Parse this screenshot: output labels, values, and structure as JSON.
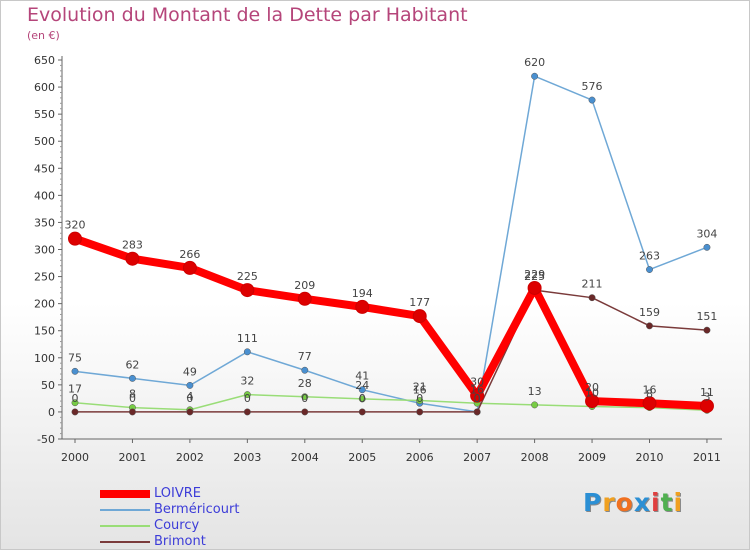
{
  "header": {
    "title": "Evolution du Montant de la Dette par Habitant",
    "subtitle": "(en €)"
  },
  "chart_data": {
    "type": "line",
    "title": "Evolution du Montant de la Dette par Habitant",
    "ylabel": "(en €)",
    "xlabel": "",
    "x": [
      "2000",
      "2001",
      "2002",
      "2003",
      "2004",
      "2005",
      "2006",
      "2007",
      "2008",
      "2009",
      "2010",
      "2011"
    ],
    "ylim": [
      -50,
      650
    ],
    "yticks": [
      -50,
      0,
      50,
      100,
      150,
      200,
      250,
      300,
      350,
      400,
      450,
      500,
      550,
      600,
      650
    ],
    "grid": false,
    "legend_position": "bottom-left",
    "series": [
      {
        "name": "LOIVRE",
        "color": "#ff0000",
        "marker_color": "#dd0000",
        "values": [
          320,
          283,
          266,
          225,
          209,
          194,
          177,
          30,
          229,
          20,
          16,
          11
        ],
        "labels": [
          "320",
          "283",
          "266",
          "225",
          "209",
          "194",
          "177",
          "30",
          "229",
          "20",
          "16",
          "11"
        ]
      },
      {
        "name": "Berméricourt",
        "color": "#6fa8d6",
        "marker_color": "#4a90d0",
        "values": [
          75,
          62,
          49,
          111,
          77,
          41,
          16,
          0,
          620,
          576,
          263,
          304
        ],
        "labels": [
          "75",
          "62",
          "49",
          "111",
          "77",
          "41",
          "16",
          "0",
          "620",
          "576",
          "263",
          "304"
        ]
      },
      {
        "name": "Courcy",
        "color": "#99dd77",
        "marker_color": "#77cc44",
        "values": [
          17,
          8,
          4,
          32,
          28,
          24,
          21,
          16,
          13,
          10,
          8,
          3
        ],
        "labels": [
          "17",
          "8",
          "4",
          "32",
          "28",
          "24",
          "21",
          "16",
          "13",
          "10",
          "8",
          "3"
        ]
      },
      {
        "name": "Brimont",
        "color": "#7a3a3a",
        "marker_color": "#6a2828",
        "values": [
          0,
          0,
          0,
          0,
          0,
          0,
          0,
          0,
          225,
          211,
          159,
          151
        ],
        "labels": [
          "0",
          "0",
          "0",
          "0",
          "0",
          "0",
          "0",
          "0",
          "225",
          "211",
          "159",
          "151"
        ]
      }
    ]
  },
  "branding": {
    "logo_letters": [
      "P",
      "r",
      "o",
      "x",
      "i",
      "t",
      "i"
    ],
    "logo_colors": [
      "#2b8fd4",
      "#f0a020",
      "#f07020",
      "#2b8fd4",
      "#e04040",
      "#50b050",
      "#f0a020"
    ]
  }
}
